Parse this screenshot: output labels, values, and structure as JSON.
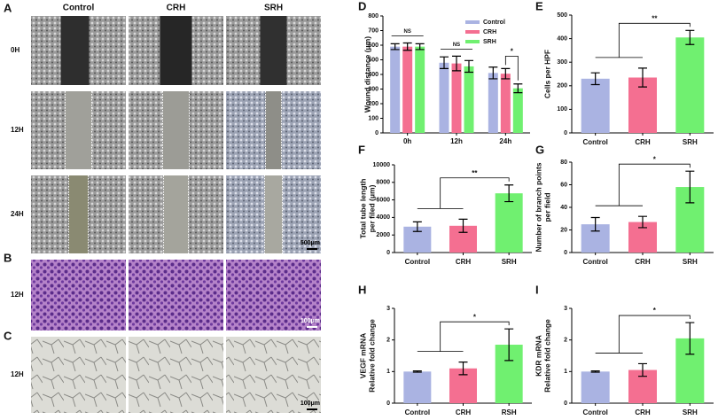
{
  "figure_panels": {
    "wound_healing": {
      "label": "A",
      "columns": [
        "Control",
        "CRH",
        "SRH"
      ],
      "rows": [
        "0H",
        "12H",
        "24H"
      ],
      "scale_bar": "500μm"
    },
    "he_stain": {
      "label": "B",
      "row": "12H",
      "scale_bar": "100μm"
    },
    "tube_formation": {
      "label": "C",
      "row": "12H",
      "scale_bar": "100μm"
    }
  },
  "chart_data": [
    {
      "panel_label": "D",
      "type": "grouped_bar",
      "y_label": [
        "Wound distance (μm)"
      ],
      "categories": [
        "0h",
        "12h",
        "24h"
      ],
      "series": [
        {
          "name": "Control",
          "color": "#aab3e2",
          "values": [
            590,
            480,
            410
          ],
          "errors": [
            20,
            40,
            40
          ]
        },
        {
          "name": "CRH",
          "color": "#f46f91",
          "values": [
            590,
            475,
            405
          ],
          "errors": [
            25,
            50,
            35
          ]
        },
        {
          "name": "SRH",
          "color": "#70f070",
          "values": [
            590,
            455,
            305
          ],
          "errors": [
            20,
            40,
            30
          ]
        }
      ],
      "ylim": [
        0,
        800
      ],
      "yticks": [
        0,
        100,
        200,
        300,
        400,
        500,
        600,
        700,
        800
      ],
      "legend": "upper right",
      "annotations": [
        "NS",
        "NS",
        "*"
      ]
    },
    {
      "panel_label": "E",
      "type": "bar",
      "y_label": [
        "Cells per HPF"
      ],
      "categories": [
        "Control",
        "CRH",
        "SRH"
      ],
      "colors": [
        "#aab3e2",
        "#f46f91",
        "#70f070"
      ],
      "values": [
        230,
        235,
        405
      ],
      "errors": [
        25,
        40,
        30
      ],
      "ylim": [
        0,
        500
      ],
      "yticks": [
        0,
        100,
        200,
        300,
        400,
        500
      ],
      "annotation": "**"
    },
    {
      "panel_label": "F",
      "type": "bar",
      "y_label": [
        "Total  tube length",
        "per filed (μm)"
      ],
      "categories": [
        "Control",
        "CRH",
        "SRH"
      ],
      "colors": [
        "#aab3e2",
        "#f46f91",
        "#70f070"
      ],
      "values": [
        2950,
        3050,
        6750
      ],
      "errors": [
        550,
        750,
        950
      ],
      "ylim": [
        0,
        10000
      ],
      "yticks": [
        0,
        2000,
        4000,
        6000,
        8000,
        10000
      ],
      "annotation": "**"
    },
    {
      "panel_label": "G",
      "type": "bar",
      "y_label": [
        "Number of branch points",
        "per field"
      ],
      "categories": [
        "Control",
        "CRH",
        "SRH"
      ],
      "colors": [
        "#aab3e2",
        "#f46f91",
        "#70f070"
      ],
      "values": [
        25,
        27,
        58
      ],
      "errors": [
        6,
        5,
        14
      ],
      "ylim": [
        0,
        80
      ],
      "yticks": [
        0,
        20,
        40,
        60,
        80
      ],
      "annotation": "*"
    },
    {
      "panel_label": "H",
      "type": "bar",
      "y_label": [
        "VEGF mRNA",
        "Relative fold change"
      ],
      "categories": [
        "Control",
        "CRH",
        "RSH"
      ],
      "colors": [
        "#aab3e2",
        "#f46f91",
        "#70f070"
      ],
      "values": [
        1.0,
        1.1,
        1.85
      ],
      "errors": [
        0.02,
        0.2,
        0.5
      ],
      "ylim": [
        0,
        3
      ],
      "yticks": [
        0,
        1,
        2,
        3
      ],
      "annotation": "*"
    },
    {
      "panel_label": "I",
      "type": "bar",
      "y_label": [
        "KDR mRNA",
        "Relative fold change"
      ],
      "categories": [
        "Control",
        "CRH",
        "SRH"
      ],
      "colors": [
        "#aab3e2",
        "#f46f91",
        "#70f070"
      ],
      "values": [
        1.0,
        1.05,
        2.05
      ],
      "errors": [
        0.02,
        0.2,
        0.5
      ],
      "ylim": [
        0,
        3
      ],
      "yticks": [
        0,
        1,
        2,
        3
      ],
      "annotation": "*"
    }
  ]
}
